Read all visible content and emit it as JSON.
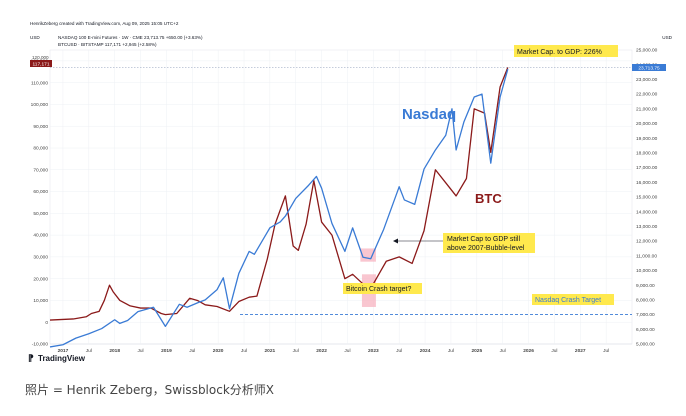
{
  "header": {
    "credit": "HenrikZeberg created with TradingView.com, Aug 09, 2025 15:05 UTC+2",
    "left_unit": "USD",
    "right_unit": "USD",
    "nasdaq_legend": "NASDAQ 100 E-mini Futures · 1W · CME  23,713.75  +650.00 (+3.63%)",
    "btc_legend": "BTCUSD · BITSTAMP  117,171  +2,945 (+2.58%)"
  },
  "footer": {
    "logo_text": "TradingView"
  },
  "caption": "照片 = Henrik Zeberg，Swissblock分析师X",
  "colors": {
    "nasdaq": "#3a7bd5",
    "btc": "#8b1a1a",
    "annotation_bg": "#ffe94d",
    "highlight": "#f7b3c0"
  },
  "chart_data": {
    "type": "line",
    "title": "",
    "x_ticks": [
      "2017",
      "Jul",
      "2018",
      "Jul",
      "2019",
      "Jul",
      "2020",
      "Jul",
      "2021",
      "Jul",
      "2022",
      "Jul",
      "2023",
      "Jul",
      "2024",
      "Jul",
      "2025",
      "Jul",
      "2026",
      "Jul",
      "2027",
      "Jul"
    ],
    "x_range": [
      2016.75,
      2028.0
    ],
    "left_axis": {
      "series": "BTCUSD",
      "range": [
        -10000,
        125000
      ],
      "ticks": [
        "-10,000",
        "0",
        "10,000",
        "20,000",
        "30,000",
        "40,000",
        "50,000",
        "60,000",
        "70,000",
        "80,000",
        "90,000",
        "100,000",
        "110,000",
        "120,000"
      ]
    },
    "right_axis": {
      "series": "Nasdaq",
      "range": [
        5000,
        25000
      ],
      "ticks": [
        "5,000.00",
        "6,000.00",
        "7,000.00",
        "8,000.00",
        "9,000.00",
        "10,000.00",
        "11,000.00",
        "12,000.00",
        "13,000.00",
        "14,000.00",
        "15,000.00",
        "16,000.00",
        "17,000.00",
        "18,000.00",
        "19,000.00",
        "20,000.00",
        "21,000.00",
        "22,000.00",
        "23,000.00",
        "24,000.00",
        "25,000.00"
      ]
    },
    "last_price_labels": {
      "btc": "117,171",
      "nasdaq": "23,713.75",
      "btc_level": "120,000"
    },
    "series": [
      {
        "name": "Nasdaq",
        "axis": "right",
        "x": [
          2016.75,
          2017.0,
          2017.25,
          2017.5,
          2017.75,
          2018.0,
          2018.1,
          2018.25,
          2018.45,
          2018.75,
          2018.98,
          2019.25,
          2019.4,
          2019.6,
          2019.75,
          2019.98,
          2020.1,
          2020.22,
          2020.4,
          2020.6,
          2020.7,
          2020.9,
          2021.0,
          2021.2,
          2021.3,
          2021.5,
          2021.75,
          2021.9,
          2022.0,
          2022.2,
          2022.45,
          2022.6,
          2022.8,
          2022.95,
          2023.2,
          2023.5,
          2023.6,
          2023.8,
          2023.98,
          2024.2,
          2024.4,
          2024.52,
          2024.6,
          2024.75,
          2024.95,
          2025.1,
          2025.27,
          2025.45,
          2025.6
        ],
        "values": [
          4800,
          4950,
          5400,
          5700,
          6050,
          6650,
          6400,
          6600,
          7200,
          7500,
          6200,
          7700,
          7500,
          7800,
          8000,
          8700,
          9500,
          7400,
          9800,
          11300,
          11100,
          12300,
          12900,
          13300,
          13700,
          14900,
          15800,
          16400,
          15600,
          13200,
          11300,
          12900,
          10900,
          10800,
          12800,
          15700,
          14800,
          14500,
          16900,
          18200,
          19200,
          21000,
          18200,
          20100,
          21800,
          22000,
          17300,
          21800,
          23700
        ]
      },
      {
        "name": "BTC",
        "axis": "left",
        "x": [
          2016.75,
          2017.2,
          2017.45,
          2017.55,
          2017.7,
          2017.8,
          2017.9,
          2017.97,
          2018.1,
          2018.3,
          2018.5,
          2018.7,
          2018.9,
          2018.98,
          2019.2,
          2019.45,
          2019.6,
          2019.75,
          2019.98,
          2020.22,
          2020.4,
          2020.6,
          2020.75,
          2020.95,
          2021.1,
          2021.3,
          2021.45,
          2021.55,
          2021.7,
          2021.85,
          2022.0,
          2022.2,
          2022.45,
          2022.6,
          2022.85,
          2022.98,
          2023.25,
          2023.5,
          2023.75,
          2023.98,
          2024.2,
          2024.4,
          2024.6,
          2024.8,
          2024.95,
          2025.15,
          2025.27,
          2025.45,
          2025.6
        ],
        "values": [
          1000,
          1500,
          2500,
          4000,
          5000,
          10000,
          17000,
          14000,
          10000,
          7500,
          6500,
          6500,
          4000,
          3500,
          4000,
          11000,
          10000,
          8000,
          7200,
          5000,
          9500,
          11500,
          12000,
          29000,
          45000,
          58000,
          35000,
          33000,
          45000,
          65000,
          46000,
          40000,
          20000,
          22000,
          16500,
          16800,
          28000,
          30000,
          27000,
          42000,
          70000,
          64000,
          58000,
          66000,
          98000,
          96000,
          78000,
          108000,
          117000
        ]
      }
    ],
    "annotations": {
      "nasdaq_label": "Nasdaq",
      "btc_label": "BTC",
      "mcap_gdp": "Market Cap. to GDP: 226%",
      "bubble_note_1": "Market Cap to GDP still",
      "bubble_note_2": "above 2007-Bubble-level",
      "btc_crash": "Bitcoin Crash target?",
      "nasdaq_crash": "Nasdaq Crash Target",
      "nasdaq_crash_level": 7000
    }
  }
}
